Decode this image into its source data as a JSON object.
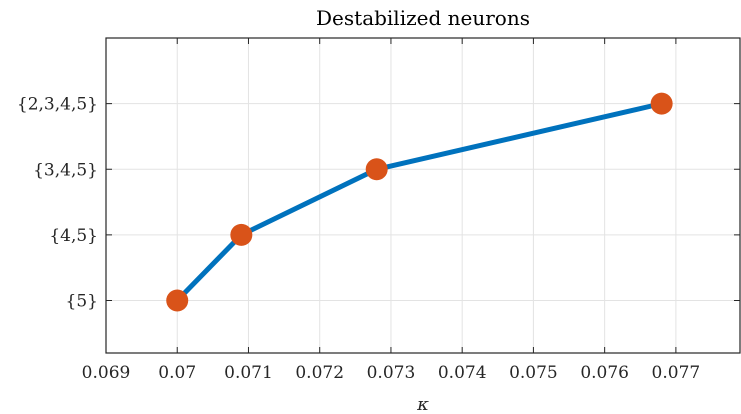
{
  "chart_data": {
    "type": "line",
    "title": "Destabilized neurons",
    "xlabel": "κ",
    "ylabel": "",
    "xlim": [
      0.069,
      0.0779
    ],
    "ylim": [
      -0.8,
      4.0
    ],
    "x_ticks": [
      0.069,
      0.07,
      0.071,
      0.072,
      0.073,
      0.074,
      0.075,
      0.076,
      0.077
    ],
    "x_tick_labels": [
      "0.069",
      "0.07",
      "0.071",
      "0.072",
      "0.073",
      "0.074",
      "0.075",
      "0.076",
      "0.077"
    ],
    "y_ticks": [
      0,
      1,
      2,
      3
    ],
    "y_tick_labels": [
      "{5}",
      "{4,5}",
      "{3,4,5}",
      "{2,3,4,5}"
    ],
    "grid": true,
    "series": [
      {
        "x": [
          0.07,
          0.0709,
          0.0728,
          0.0768
        ],
        "y": [
          0,
          1,
          2,
          3
        ]
      }
    ],
    "colors": {
      "line": "#0072BD",
      "marker": "#D95319",
      "grid": "#e3e3e3",
      "axis": "#262626"
    }
  }
}
